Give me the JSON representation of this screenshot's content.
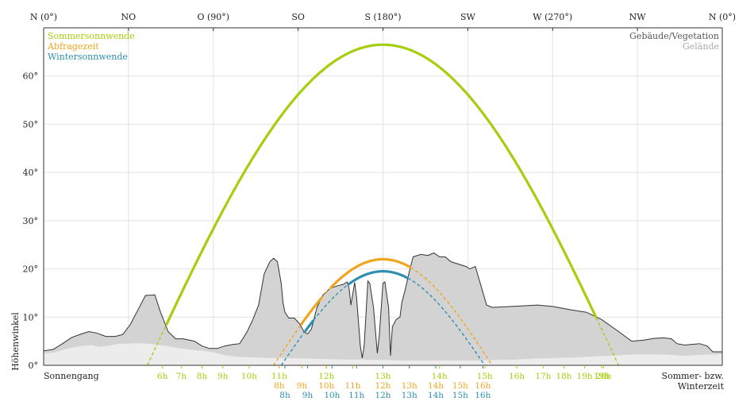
{
  "colors": {
    "summer": "#a5cf0e",
    "query": "#f0a51f",
    "winter": "#2e8fb0",
    "buildings_fill": "#d3d3d3",
    "buildings_stroke": "#333333",
    "terrain_fill": "#ececec",
    "grid": "#e2e2e2",
    "text": "#222222",
    "terrain_legend_text": "#aaaaaa"
  },
  "chart_data": {
    "type": "line",
    "xlim": [
      0,
      360
    ],
    "ylim": [
      0,
      70
    ],
    "grid": "vertical-and-horizontal",
    "legend_placement": "top-left",
    "ylabel": "Höhenwinkel",
    "x_ticks": [
      {
        "x": 0,
        "label": "N (0°)"
      },
      {
        "x": 45,
        "label": "NO"
      },
      {
        "x": 90,
        "label": "O (90°)"
      },
      {
        "x": 135,
        "label": "SO"
      },
      {
        "x": 180,
        "label": "S (180°)"
      },
      {
        "x": 225,
        "label": "SW"
      },
      {
        "x": 270,
        "label": "W (270°)"
      },
      {
        "x": 315,
        "label": "NW"
      },
      {
        "x": 360,
        "label": "N (0°)"
      }
    ],
    "y_ticks": [
      {
        "y": 0,
        "label": "0°"
      },
      {
        "y": 10,
        "label": "10°"
      },
      {
        "y": 20,
        "label": "20°"
      },
      {
        "y": 30,
        "label": "30°"
      },
      {
        "y": 40,
        "label": "40°"
      },
      {
        "y": 50,
        "label": "50°"
      },
      {
        "y": 60,
        "label": "60°"
      }
    ],
    "legend": {
      "series": [
        {
          "label": "Sommersonnwende",
          "color": "#a5cf0e"
        },
        {
          "label": "Abfragezeit",
          "color": "#f0a51f"
        },
        {
          "label": "Wintersonnwende",
          "color": "#2e8fb0"
        }
      ],
      "obstacles": [
        {
          "label": "Gebäude/Vegetation",
          "color": "#555555"
        },
        {
          "label": "Gelände",
          "color": "#aaaaaa"
        }
      ]
    },
    "bottom_labels": {
      "left": "Sonnengang",
      "right_line1": "Sommer- bzw.",
      "right_line2": "Winterzeit"
    },
    "series": [
      {
        "key": "summer",
        "color": "#a5cf0e",
        "peak": 66.5,
        "az_rise": 55,
        "az_set": 305,
        "hours": [
          {
            "label": "6h",
            "az": 63
          },
          {
            "label": "7h",
            "az": 73
          },
          {
            "label": "8h",
            "az": 84
          },
          {
            "label": "9h",
            "az": 95
          },
          {
            "label": "10h",
            "az": 109
          },
          {
            "label": "11h",
            "az": 125
          },
          {
            "label": "12h",
            "az": 150
          },
          {
            "label": "13h",
            "az": 180
          },
          {
            "label": "14h",
            "az": 210
          },
          {
            "label": "15h",
            "az": 234
          },
          {
            "label": "16h",
            "az": 251
          },
          {
            "label": "17h",
            "az": 265
          },
          {
            "label": "18h",
            "az": 276
          },
          {
            "label": "19h",
            "az": 287
          },
          {
            "label": "19h",
            "az": 296
          },
          {
            "label": "20h",
            "az": 297
          }
        ]
      },
      {
        "key": "query",
        "color": "#f0a51f",
        "peak": 22,
        "az_rise": 122,
        "az_set": 238,
        "hours": [
          {
            "label": "8h",
            "az": 125
          },
          {
            "label": "9h",
            "az": 137
          },
          {
            "label": "10h",
            "az": 150
          },
          {
            "label": "11h",
            "az": 164
          },
          {
            "label": "12h",
            "az": 180
          },
          {
            "label": "13h",
            "az": 194
          },
          {
            "label": "14h",
            "az": 208
          },
          {
            "label": "15h",
            "az": 221
          },
          {
            "label": "16h",
            "az": 233
          }
        ]
      },
      {
        "key": "winter",
        "color": "#2e8fb0",
        "peak": 19.5,
        "az_rise": 126,
        "az_set": 234,
        "hours": [
          {
            "label": "8h",
            "az": 128
          },
          {
            "label": "9h",
            "az": 140
          },
          {
            "label": "10h",
            "az": 153
          },
          {
            "label": "11h",
            "az": 166
          },
          {
            "label": "12h",
            "az": 180
          },
          {
            "label": "13h",
            "az": 194
          },
          {
            "label": "14h",
            "az": 208
          },
          {
            "label": "15h",
            "az": 221
          },
          {
            "label": "16h",
            "az": 233
          }
        ]
      }
    ],
    "buildings_profile": [
      [
        0,
        3.0
      ],
      [
        5,
        3.3
      ],
      [
        10,
        4.5
      ],
      [
        15,
        5.8
      ],
      [
        20,
        6.5
      ],
      [
        24,
        7.0
      ],
      [
        28,
        6.7
      ],
      [
        33,
        6.0
      ],
      [
        38,
        6.0
      ],
      [
        42,
        6.4
      ],
      [
        46,
        8.5
      ],
      [
        50,
        11.5
      ],
      [
        54,
        14.5
      ],
      [
        59,
        14.6
      ],
      [
        62,
        11.0
      ],
      [
        66,
        7.0
      ],
      [
        70,
        5.5
      ],
      [
        74,
        5.5
      ],
      [
        80,
        5.0
      ],
      [
        84,
        4.0
      ],
      [
        88,
        3.5
      ],
      [
        92,
        3.5
      ],
      [
        96,
        4.0
      ],
      [
        100,
        4.3
      ],
      [
        104,
        4.5
      ],
      [
        108,
        7.0
      ],
      [
        111,
        9.5
      ],
      [
        114,
        12.5
      ],
      [
        117,
        19.0
      ],
      [
        120,
        21.5
      ],
      [
        122,
        22.2
      ],
      [
        124,
        21.5
      ],
      [
        126,
        17.0
      ],
      [
        127,
        13.0
      ],
      [
        128,
        11.0
      ],
      [
        130,
        9.8
      ],
      [
        133,
        9.8
      ],
      [
        136,
        8.5
      ],
      [
        138,
        7.0
      ],
      [
        140,
        6.5
      ],
      [
        142,
        7.5
      ],
      [
        145,
        12.0
      ],
      [
        148,
        14.5
      ],
      [
        152,
        16.0
      ],
      [
        156,
        16.5
      ],
      [
        159,
        16.8
      ],
      [
        161,
        17.3
      ],
      [
        162,
        16.0
      ],
      [
        163,
        12.5
      ],
      [
        165,
        17.2
      ],
      [
        166,
        14.0
      ],
      [
        168,
        4.0
      ],
      [
        169,
        1.5
      ],
      [
        170,
        4.0
      ],
      [
        172,
        17.5
      ],
      [
        173,
        17.0
      ],
      [
        175,
        12.0
      ],
      [
        177,
        2.5
      ],
      [
        178,
        6.0
      ],
      [
        180,
        17.0
      ],
      [
        181,
        17.3
      ],
      [
        183,
        12.0
      ],
      [
        184,
        2.0
      ],
      [
        185,
        8.0
      ],
      [
        187,
        9.5
      ],
      [
        189,
        10.0
      ],
      [
        190,
        13.0
      ],
      [
        192,
        16.0
      ],
      [
        194,
        19.5
      ],
      [
        196,
        22.5
      ],
      [
        200,
        23.0
      ],
      [
        204,
        22.8
      ],
      [
        207,
        23.3
      ],
      [
        210,
        22.5
      ],
      [
        213,
        22.5
      ],
      [
        216,
        21.5
      ],
      [
        220,
        21.0
      ],
      [
        224,
        20.5
      ],
      [
        226,
        20.0
      ],
      [
        229,
        20.5
      ],
      [
        232,
        16.5
      ],
      [
        235,
        12.5
      ],
      [
        238,
        12.0
      ],
      [
        262,
        12.5
      ],
      [
        270,
        12.2
      ],
      [
        280,
        11.5
      ],
      [
        288,
        11.0
      ],
      [
        296,
        9.5
      ],
      [
        305,
        7.0
      ],
      [
        312,
        5.0
      ],
      [
        318,
        5.2
      ],
      [
        324,
        5.6
      ],
      [
        329,
        5.7
      ],
      [
        333,
        5.5
      ],
      [
        336,
        4.5
      ],
      [
        340,
        4.2
      ],
      [
        348,
        4.5
      ],
      [
        352,
        4.0
      ],
      [
        355,
        2.8
      ],
      [
        360,
        2.8
      ]
    ],
    "terrain_profile": [
      [
        0,
        2.5
      ],
      [
        5,
        2.6
      ],
      [
        10,
        3.2
      ],
      [
        15,
        3.7
      ],
      [
        20,
        4.0
      ],
      [
        25,
        4.2
      ],
      [
        30,
        3.8
      ],
      [
        35,
        4.1
      ],
      [
        40,
        4.5
      ],
      [
        45,
        4.5
      ],
      [
        50,
        4.6
      ],
      [
        55,
        4.5
      ],
      [
        60,
        4.3
      ],
      [
        65,
        4.0
      ],
      [
        70,
        3.7
      ],
      [
        75,
        3.4
      ],
      [
        80,
        3.2
      ],
      [
        85,
        3.0
      ],
      [
        90,
        2.7
      ],
      [
        95,
        2.2
      ],
      [
        100,
        1.9
      ],
      [
        105,
        1.7
      ],
      [
        110,
        1.7
      ],
      [
        115,
        1.6
      ],
      [
        120,
        1.5
      ],
      [
        130,
        1.5
      ],
      [
        140,
        1.4
      ],
      [
        150,
        1.3
      ],
      [
        160,
        1.2
      ],
      [
        170,
        1.2
      ],
      [
        180,
        1.1
      ],
      [
        190,
        1.0
      ],
      [
        200,
        1.0
      ],
      [
        210,
        1.0
      ],
      [
        220,
        1.0
      ],
      [
        230,
        1.0
      ],
      [
        240,
        1.1
      ],
      [
        250,
        1.2
      ],
      [
        260,
        1.4
      ],
      [
        270,
        1.5
      ],
      [
        280,
        1.6
      ],
      [
        290,
        1.8
      ],
      [
        300,
        2.0
      ],
      [
        310,
        2.2
      ],
      [
        320,
        2.3
      ],
      [
        330,
        2.2
      ],
      [
        340,
        2.0
      ],
      [
        350,
        2.2
      ],
      [
        360,
        2.3
      ]
    ]
  }
}
